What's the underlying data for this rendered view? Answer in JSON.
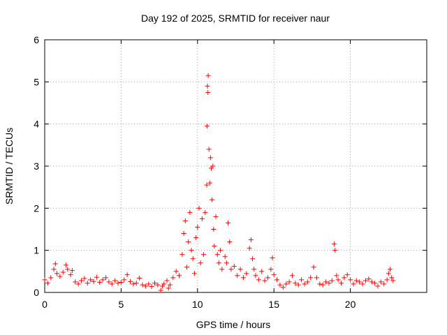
{
  "chart_data": {
    "type": "scatter",
    "title": "Day 192 of 2025, SRMTID for receiver naur",
    "xlabel": "GPS time / hours",
    "ylabel": "SRMTID / TECUs",
    "xlim": [
      0,
      25
    ],
    "ylim": [
      0,
      6
    ],
    "x_ticks": [
      "0",
      "5",
      "10",
      "15",
      "20"
    ],
    "y_ticks": [
      "0",
      "1",
      "2",
      "3",
      "4",
      "5",
      "6"
    ],
    "grid": true,
    "marker": "+",
    "series": [
      {
        "name": "SRMTID",
        "color": "#ff0000",
        "points": [
          [
            0.0,
            0.3
          ],
          [
            0.2,
            0.22
          ],
          [
            0.4,
            0.35
          ],
          [
            0.6,
            0.55
          ],
          [
            0.7,
            0.68
          ],
          [
            0.8,
            0.45
          ],
          [
            1.0,
            0.38
          ],
          [
            1.2,
            0.48
          ],
          [
            1.4,
            0.65
          ],
          [
            1.5,
            0.55
          ],
          [
            1.7,
            0.42
          ],
          [
            1.8,
            0.52
          ],
          [
            2.0,
            0.25
          ],
          [
            2.2,
            0.2
          ],
          [
            2.4,
            0.28
          ],
          [
            2.6,
            0.33
          ],
          [
            2.8,
            0.22
          ],
          [
            3.0,
            0.3
          ],
          [
            3.2,
            0.26
          ],
          [
            3.4,
            0.36
          ],
          [
            3.6,
            0.24
          ],
          [
            3.8,
            0.3
          ],
          [
            4.0,
            0.35
          ],
          [
            4.2,
            0.25
          ],
          [
            4.4,
            0.2
          ],
          [
            4.6,
            0.28
          ],
          [
            4.8,
            0.22
          ],
          [
            5.0,
            0.24
          ],
          [
            5.2,
            0.3
          ],
          [
            5.4,
            0.42
          ],
          [
            5.6,
            0.26
          ],
          [
            5.8,
            0.2
          ],
          [
            6.0,
            0.22
          ],
          [
            6.2,
            0.34
          ],
          [
            6.4,
            0.18
          ],
          [
            6.6,
            0.15
          ],
          [
            6.8,
            0.2
          ],
          [
            7.0,
            0.14
          ],
          [
            7.2,
            0.22
          ],
          [
            7.4,
            0.18
          ],
          [
            7.6,
            0.05
          ],
          [
            7.7,
            0.15
          ],
          [
            7.8,
            0.2
          ],
          [
            8.0,
            0.28
          ],
          [
            8.1,
            0.1
          ],
          [
            8.2,
            0.18
          ],
          [
            8.4,
            0.35
          ],
          [
            8.6,
            0.5
          ],
          [
            8.8,
            0.4
          ],
          [
            9.0,
            0.9
          ],
          [
            9.1,
            1.4
          ],
          [
            9.2,
            1.7
          ],
          [
            9.3,
            0.6
          ],
          [
            9.4,
            1.2
          ],
          [
            9.5,
            1.9
          ],
          [
            9.6,
            1.0
          ],
          [
            9.7,
            0.8
          ],
          [
            9.8,
            0.45
          ],
          [
            9.9,
            1.3
          ],
          [
            10.0,
            1.55
          ],
          [
            10.1,
            2.0
          ],
          [
            10.2,
            0.7
          ],
          [
            10.3,
            1.75
          ],
          [
            10.4,
            0.9
          ],
          [
            10.5,
            1.9
          ],
          [
            10.6,
            2.55
          ],
          [
            10.62,
            3.95
          ],
          [
            10.65,
            4.9
          ],
          [
            10.68,
            4.75
          ],
          [
            10.7,
            5.15
          ],
          [
            10.75,
            3.4
          ],
          [
            10.8,
            2.6
          ],
          [
            10.85,
            3.2
          ],
          [
            10.9,
            2.95
          ],
          [
            10.95,
            2.2
          ],
          [
            11.0,
            3.0
          ],
          [
            11.05,
            1.5
          ],
          [
            11.1,
            1.1
          ],
          [
            11.2,
            1.8
          ],
          [
            11.3,
            0.9
          ],
          [
            11.4,
            0.7
          ],
          [
            11.5,
            1.0
          ],
          [
            11.6,
            0.55
          ],
          [
            11.8,
            0.85
          ],
          [
            11.9,
            0.7
          ],
          [
            12.0,
            1.65
          ],
          [
            12.1,
            1.2
          ],
          [
            12.2,
            0.55
          ],
          [
            12.4,
            0.62
          ],
          [
            12.6,
            0.4
          ],
          [
            12.8,
            0.55
          ],
          [
            13.0,
            0.35
          ],
          [
            13.2,
            0.45
          ],
          [
            13.4,
            1.05
          ],
          [
            13.5,
            1.25
          ],
          [
            13.6,
            0.8
          ],
          [
            13.7,
            0.55
          ],
          [
            13.8,
            0.4
          ],
          [
            14.0,
            0.3
          ],
          [
            14.2,
            0.5
          ],
          [
            14.4,
            0.28
          ],
          [
            14.6,
            0.35
          ],
          [
            14.8,
            0.55
          ],
          [
            14.9,
            0.82
          ],
          [
            15.0,
            0.42
          ],
          [
            15.2,
            0.3
          ],
          [
            15.4,
            0.18
          ],
          [
            15.6,
            0.12
          ],
          [
            15.8,
            0.2
          ],
          [
            16.0,
            0.25
          ],
          [
            16.2,
            0.4
          ],
          [
            16.4,
            0.22
          ],
          [
            16.6,
            0.18
          ],
          [
            16.8,
            0.3
          ],
          [
            17.0,
            0.2
          ],
          [
            17.2,
            0.25
          ],
          [
            17.4,
            0.35
          ],
          [
            17.6,
            0.6
          ],
          [
            17.8,
            0.35
          ],
          [
            18.0,
            0.2
          ],
          [
            18.2,
            0.18
          ],
          [
            18.4,
            0.25
          ],
          [
            18.6,
            0.22
          ],
          [
            18.8,
            0.28
          ],
          [
            18.95,
            1.15
          ],
          [
            19.0,
            1.0
          ],
          [
            19.1,
            0.4
          ],
          [
            19.2,
            0.3
          ],
          [
            19.4,
            0.22
          ],
          [
            19.6,
            0.35
          ],
          [
            19.8,
            0.42
          ],
          [
            20.0,
            0.3
          ],
          [
            20.2,
            0.2
          ],
          [
            20.4,
            0.28
          ],
          [
            20.6,
            0.25
          ],
          [
            20.8,
            0.2
          ],
          [
            21.0,
            0.28
          ],
          [
            21.2,
            0.32
          ],
          [
            21.4,
            0.25
          ],
          [
            21.6,
            0.22
          ],
          [
            21.8,
            0.15
          ],
          [
            22.0,
            0.25
          ],
          [
            22.2,
            0.2
          ],
          [
            22.4,
            0.3
          ],
          [
            22.5,
            0.45
          ],
          [
            22.6,
            0.55
          ],
          [
            22.7,
            0.35
          ],
          [
            22.8,
            0.28
          ]
        ]
      }
    ]
  }
}
